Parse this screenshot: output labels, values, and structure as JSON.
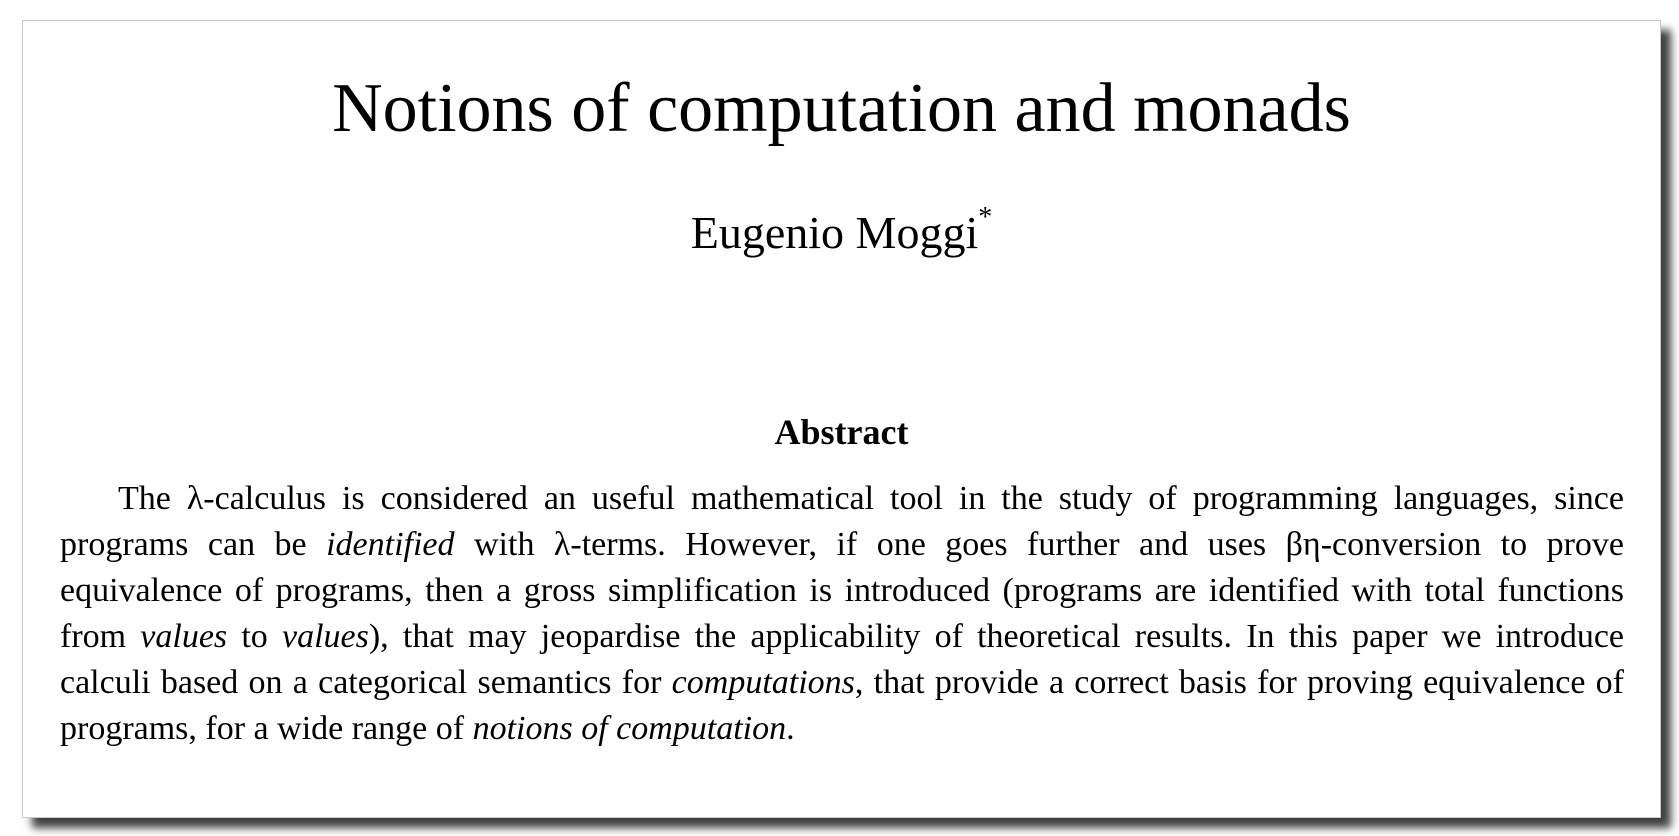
{
  "paper": {
    "title": "Notions of computation and monads",
    "author": "Eugenio Moggi",
    "author_mark": "*",
    "abstract_heading": "Abstract",
    "abstract": {
      "p1": "The λ-calculus is considered an useful mathematical tool in the study of programming languages, since programs can be ",
      "e1": "identified",
      "p2": " with λ-terms. However, if one goes further and uses βη-conversion to prove equivalence of programs, then a gross simplification is introduced (programs are identified with total functions from ",
      "e2": "values",
      "p3": " to ",
      "e3": "values",
      "p4": "), that may jeopardise the applicability of theoretical results. In this paper we introduce calculi based on a categorical semantics for ",
      "e4": "computations",
      "p5": ", that provide a correct basis for proving equivalence of programs, for a wide range of ",
      "e5": "notions of computation",
      "p6": "."
    }
  }
}
